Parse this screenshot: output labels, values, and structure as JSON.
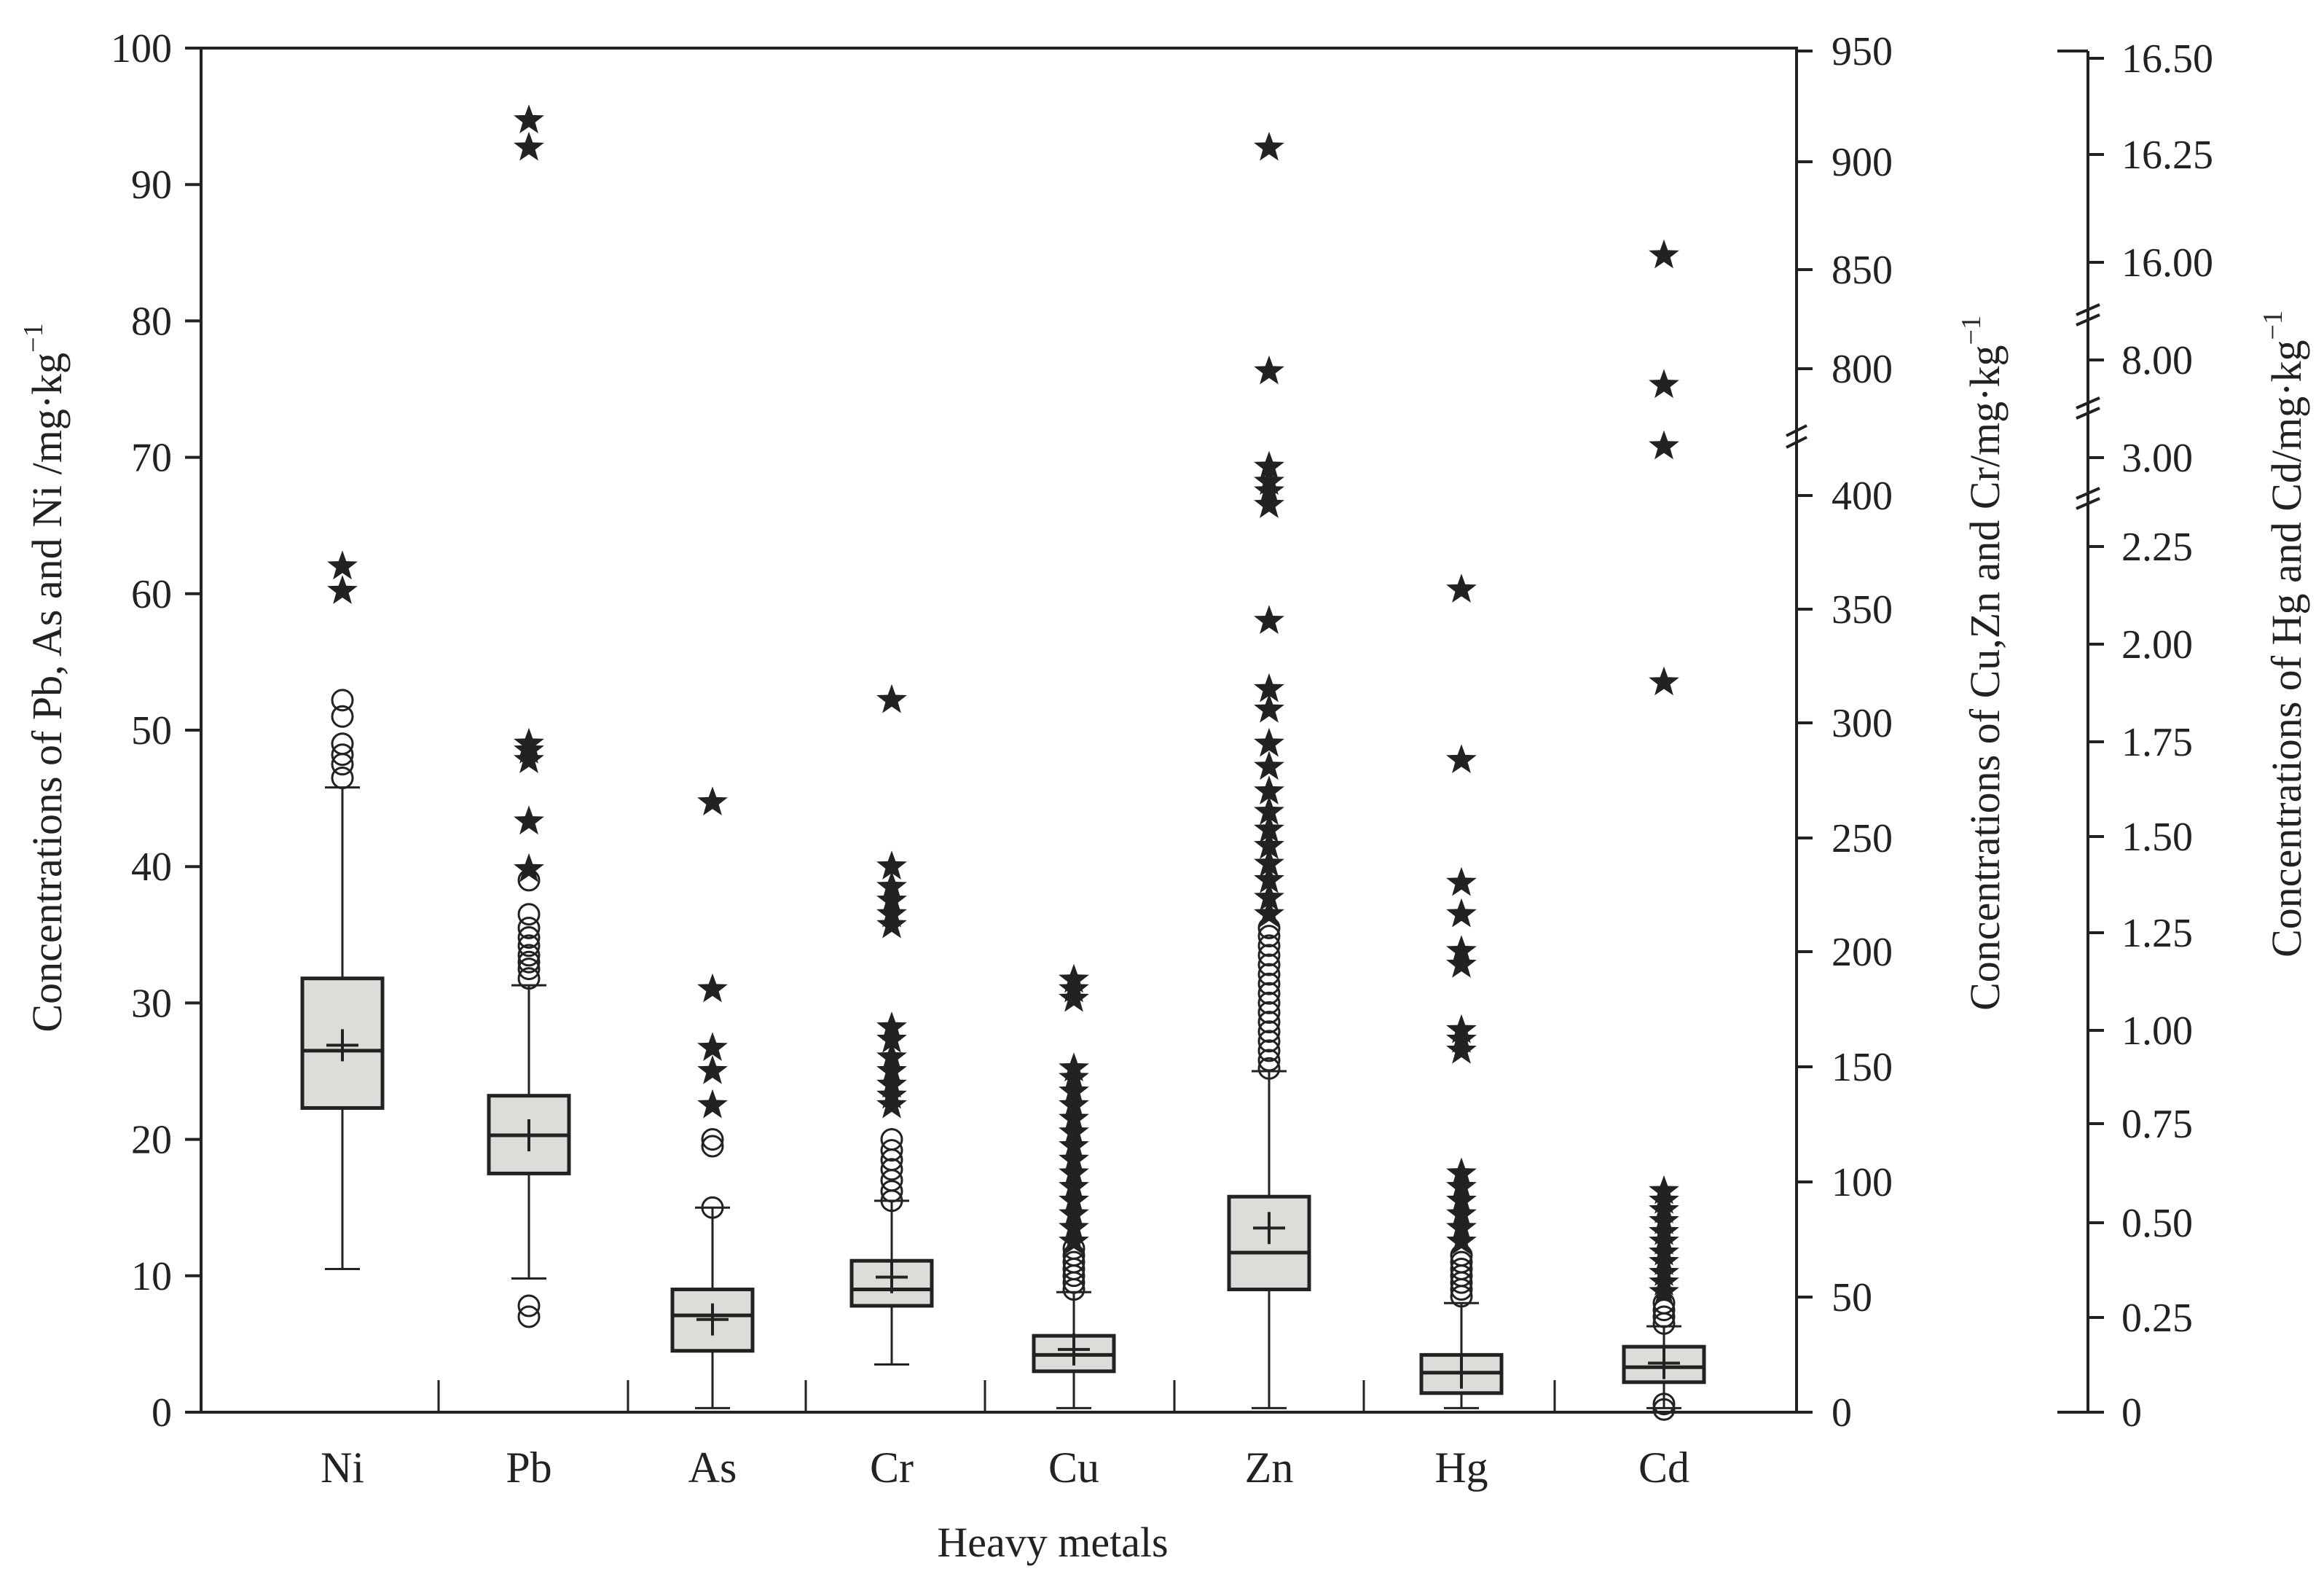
{
  "chart_data": {
    "type": "boxplot",
    "xlabel": "Heavy metals",
    "ylabel_left": "Concentrations of Pb, As and Ni /mg·kg",
    "ylabel_right1": "Concentrations of Cu,Zn and Cr/mg·kg",
    "ylabel_right2": "Concentrations of  Hg and Cd/mg·kg",
    "ylabel_exponent": "−1",
    "axes": {
      "left": {
        "min": 0,
        "max": 100,
        "ticks": [
          0,
          10,
          20,
          30,
          40,
          50,
          60,
          70,
          80,
          90,
          100
        ]
      },
      "right1": {
        "ticks": [
          "0",
          "50",
          "100",
          "150",
          "200",
          "250",
          "300",
          "350",
          "400",
          "800",
          "850",
          "900",
          "950"
        ],
        "break_between": [
          "400",
          "800"
        ]
      },
      "right2": {
        "ticks": [
          "0",
          "0.25",
          "0.50",
          "0.75",
          "1.00",
          "1.25",
          "1.50",
          "1.75",
          "2.00",
          "2.25",
          "3.00",
          "8.00",
          "16.00",
          "16.25",
          "16.50"
        ],
        "break_between": [
          [
            "2.25",
            "3.00"
          ],
          [
            "3.00",
            "8.00"
          ],
          [
            "8.00",
            "16.00"
          ]
        ]
      }
    },
    "categories": [
      "Ni",
      "Pb",
      "As",
      "Cr",
      "Cu",
      "Zn",
      "Hg",
      "Cd"
    ],
    "note": "values below are read on the left axis scale (0-100)",
    "boxes": [
      {
        "name": "Ni",
        "whisker_low": 10.5,
        "q1": 22.3,
        "median": 26.5,
        "q3": 31.8,
        "whisker_high": 45.8,
        "mean": 26.9,
        "mild_outliers": [
          46.5,
          47.5,
          48.2,
          49.0,
          51.0,
          52.2
        ],
        "extreme_outliers": [
          60.2,
          62.0
        ]
      },
      {
        "name": "Pb",
        "whisker_low": 9.8,
        "q1": 17.5,
        "median": 20.3,
        "q3": 23.2,
        "whisker_high": 31.3,
        "mean": 20.3,
        "mild_outliers": [
          7.0,
          7.8,
          31.8,
          32.5,
          33.0,
          33.5,
          34.2,
          34.8,
          35.5,
          36.5,
          39.0
        ],
        "extreme_outliers": [
          39.8,
          43.3,
          47.8,
          48.5,
          49.0,
          92.7,
          94.7
        ]
      },
      {
        "name": "As",
        "whisker_low": 0.3,
        "q1": 4.5,
        "median": 7.1,
        "q3": 9.0,
        "whisker_high": 15.0,
        "mean": 6.8,
        "mild_outliers": [
          15.0,
          19.5,
          20.0
        ],
        "extreme_outliers": [
          22.5,
          25.0,
          26.7,
          31.0,
          44.7
        ]
      },
      {
        "name": "Cr",
        "whisker_low": 3.5,
        "q1": 7.8,
        "median": 9.0,
        "q3": 11.1,
        "whisker_high": 15.5,
        "mean": 9.9,
        "mild_outliers": [
          15.5,
          16.2,
          17.0,
          17.8,
          18.5,
          19.2,
          20.0
        ],
        "extreme_outliers": [
          22.5,
          23.2,
          24.0,
          25.0,
          26.0,
          27.3,
          28.2,
          35.7,
          36.5,
          37.5,
          38.5,
          40.0,
          52.2
        ]
      },
      {
        "name": "Cu",
        "whisker_low": 0.3,
        "q1": 3.0,
        "median": 4.2,
        "q3": 5.6,
        "whisker_high": 8.8,
        "mean": 4.6,
        "mild_outliers": [
          9.0,
          9.5,
          10.0,
          10.5,
          11.0,
          11.5,
          12.0
        ],
        "extreme_outliers": [
          12.5,
          13.5,
          14.5,
          15.5,
          16.5,
          17.5,
          18.5,
          19.5,
          20.5,
          21.5,
          22.5,
          23.5,
          24.5,
          25.2,
          30.3,
          31.0,
          31.7
        ]
      },
      {
        "name": "Zn",
        "whisker_low": 0.3,
        "q1": 9.0,
        "median": 11.7,
        "q3": 15.8,
        "whisker_high": 25.0,
        "mean": 13.5,
        "mild_outliers": [
          25.2,
          25.8,
          26.5,
          27.2,
          27.9,
          28.6,
          29.3,
          30.0,
          30.7,
          31.4,
          32.1,
          32.8,
          33.5,
          34.2,
          34.9,
          35.5
        ],
        "extreme_outliers": [
          36.5,
          37.7,
          39.0,
          40.2,
          41.5,
          42.7,
          44.0,
          45.5,
          47.3,
          49.0,
          51.5,
          53.0,
          58.0,
          66.5,
          67.5,
          68.2,
          69.3,
          76.3,
          92.7
        ]
      },
      {
        "name": "Hg",
        "whisker_low": 0.3,
        "q1": 1.4,
        "median": 2.9,
        "q3": 4.2,
        "whisker_high": 8.0,
        "mean": 2.9,
        "mild_outliers": [
          8.5,
          9.0,
          9.5,
          10.0,
          10.5,
          11.0,
          11.5
        ],
        "extreme_outliers": [
          12.5,
          13.5,
          14.5,
          15.5,
          16.5,
          17.5,
          26.5,
          27.3,
          28.0,
          32.8,
          33.8,
          36.5,
          38.8,
          47.8,
          60.3
        ]
      },
      {
        "name": "Cd",
        "whisker_low": 0.3,
        "q1": 2.2,
        "median": 3.3,
        "q3": 4.8,
        "whisker_high": 6.3,
        "mean": 3.6,
        "mild_outliers": [
          0.2,
          0.6,
          6.5,
          7.0,
          7.5,
          8.0
        ],
        "extreme_outliers": [
          8.8,
          9.5,
          10.2,
          11.0,
          11.7,
          12.5,
          13.2,
          14.0,
          14.8,
          15.5,
          16.2,
          53.5,
          70.8,
          75.3,
          84.8
        ]
      }
    ]
  }
}
